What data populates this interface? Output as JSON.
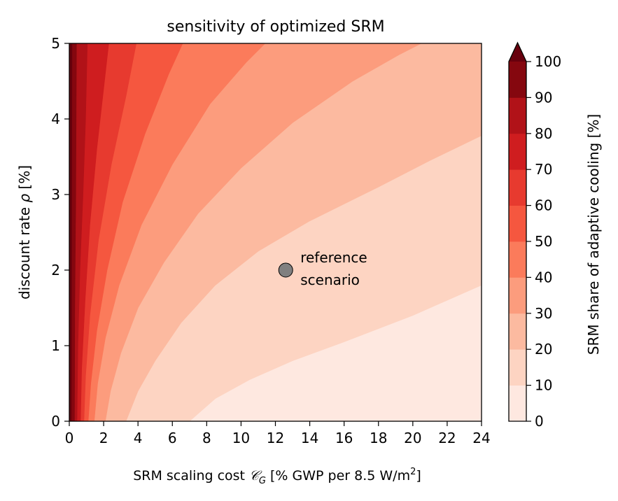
{
  "chart_data": {
    "type": "contourf",
    "title": "sensitivity of optimized SRM",
    "xlabel": "SRM scaling cost ",
    "xlabel_symbol": "𝒞",
    "xlabel_subscript": "G",
    "xlabel_rest": " [% GWP per 8.5 W/m",
    "xlabel_sup": "2",
    "xlabel_end": "]",
    "ylabel": "discount rate ",
    "ylabel_symbol": "ρ",
    "ylabel_end": " [%]",
    "xlim": [
      0,
      24
    ],
    "ylim": [
      0,
      5
    ],
    "xticks": [
      "0",
      "2",
      "4",
      "6",
      "8",
      "10",
      "12",
      "14",
      "16",
      "18",
      "20",
      "22",
      "24"
    ],
    "yticks": [
      "0",
      "1",
      "2",
      "3",
      "4",
      "5"
    ],
    "colorbar": {
      "label": "SRM share of adaptive cooling [%]",
      "ticks": [
        "0",
        "10",
        "20",
        "30",
        "40",
        "50",
        "60",
        "70",
        "80",
        "90",
        "100"
      ],
      "extend": "max"
    },
    "levels": [
      0,
      10,
      20,
      30,
      40,
      50,
      60,
      70,
      80,
      90,
      100
    ],
    "colors": [
      "#fee8e0",
      "#fdd4c2",
      "#fcbaa0",
      "#fc9c7d",
      "#fb7b5b",
      "#f5573f",
      "#e73a2f",
      "#cf1d1f",
      "#b11218",
      "#85070f",
      "#67000d"
    ],
    "boundaries": [
      {
        "level": 10,
        "points": [
          [
            7.0,
            0
          ],
          [
            8.5,
            0.3
          ],
          [
            10.5,
            0.55
          ],
          [
            13,
            0.8
          ],
          [
            16,
            1.05
          ],
          [
            20,
            1.4
          ],
          [
            24,
            1.8
          ]
        ]
      },
      {
        "level": 20,
        "points": [
          [
            3.3,
            0
          ],
          [
            4.0,
            0.4
          ],
          [
            5.0,
            0.8
          ],
          [
            6.5,
            1.3
          ],
          [
            8.5,
            1.8
          ],
          [
            11,
            2.25
          ],
          [
            14,
            2.65
          ],
          [
            18,
            3.1
          ],
          [
            21,
            3.45
          ],
          [
            24,
            3.78
          ]
        ]
      },
      {
        "level": 30,
        "points": [
          [
            2.1,
            0
          ],
          [
            2.4,
            0.4
          ],
          [
            3.0,
            0.9
          ],
          [
            4.0,
            1.5
          ],
          [
            5.5,
            2.1
          ],
          [
            7.5,
            2.75
          ],
          [
            10,
            3.35
          ],
          [
            13,
            3.95
          ],
          [
            16.5,
            4.5
          ],
          [
            19.2,
            4.85
          ],
          [
            20.5,
            5.0
          ]
        ]
      },
      {
        "level": 40,
        "points": [
          [
            1.45,
            0
          ],
          [
            1.65,
            0.5
          ],
          [
            2.1,
            1.1
          ],
          [
            2.9,
            1.8
          ],
          [
            4.2,
            2.6
          ],
          [
            6.0,
            3.4
          ],
          [
            8.2,
            4.2
          ],
          [
            10.3,
            4.75
          ],
          [
            11.4,
            5.0
          ]
        ]
      },
      {
        "level": 50,
        "points": [
          [
            1.1,
            0
          ],
          [
            1.25,
            0.5
          ],
          [
            1.6,
            1.2
          ],
          [
            2.2,
            2.0
          ],
          [
            3.1,
            2.9
          ],
          [
            4.4,
            3.8
          ],
          [
            5.8,
            4.6
          ],
          [
            6.6,
            5.0
          ]
        ]
      },
      {
        "level": 60,
        "points": [
          [
            0.85,
            0
          ],
          [
            0.95,
            0.6
          ],
          [
            1.2,
            1.4
          ],
          [
            1.7,
            2.4
          ],
          [
            2.45,
            3.4
          ],
          [
            3.3,
            4.3
          ],
          [
            3.9,
            5.0
          ]
        ]
      },
      {
        "level": 70,
        "points": [
          [
            0.65,
            0
          ],
          [
            0.72,
            0.7
          ],
          [
            0.92,
            1.6
          ],
          [
            1.2,
            2.6
          ],
          [
            1.6,
            3.6
          ],
          [
            2.0,
            4.4
          ],
          [
            2.3,
            5.0
          ]
        ]
      },
      {
        "level": 80,
        "points": [
          [
            0.45,
            0
          ],
          [
            0.5,
            1.0
          ],
          [
            0.62,
            2.0
          ],
          [
            0.8,
            3.0
          ],
          [
            0.95,
            4.0
          ],
          [
            1.05,
            5.0
          ]
        ]
      },
      {
        "level": 90,
        "points": [
          [
            0.3,
            0
          ],
          [
            0.32,
            1.5
          ],
          [
            0.38,
            3.0
          ],
          [
            0.42,
            5.0
          ]
        ]
      },
      {
        "level": 100,
        "points": [
          [
            0.12,
            0
          ],
          [
            0.14,
            2.5
          ],
          [
            0.16,
            5.0
          ]
        ]
      }
    ],
    "reference": {
      "x": 12.6,
      "y": 2.0,
      "label_line1": "reference",
      "label_line2": "scenario",
      "color": "#808080"
    }
  }
}
